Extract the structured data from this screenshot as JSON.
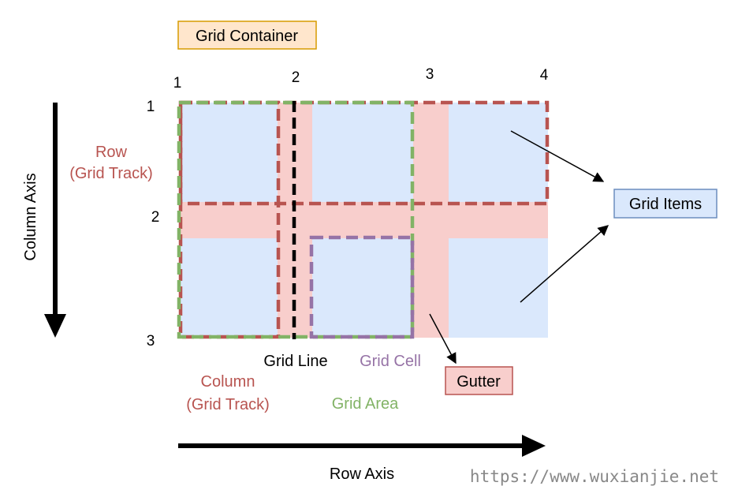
{
  "diagram": {
    "container_label": "Grid Container",
    "grid_items_label": "Grid Items",
    "gutter_label": "Gutter",
    "row_label": {
      "line1": "Row",
      "line2": "(Grid Track)"
    },
    "column_label": {
      "line1": "Column",
      "line2": "(Grid Track)"
    },
    "grid_line_label": "Grid Line",
    "grid_cell_label": "Grid Cell",
    "grid_area_label": "Grid Area",
    "column_axis_label": "Column Axis",
    "row_axis_label": "Row Axis",
    "column_line_numbers": [
      "1",
      "2",
      "3",
      "4"
    ],
    "row_line_numbers": [
      "1",
      "2",
      "3"
    ],
    "watermark": "https://www.wuxianjie.net"
  },
  "colors": {
    "cell_fill": "#dae8fc",
    "gutter_fill": "#f8cecc",
    "track_dash": "#b85450",
    "area_dash": "#82b366",
    "cell_dash": "#9673a6",
    "line_dash": "#000000",
    "container_box_fill": "#ffe6cc",
    "container_box_stroke": "#d79b00",
    "items_box_fill": "#dae8fc",
    "items_box_stroke": "#6c8ebf",
    "gutter_box_fill": "#f8cecc",
    "gutter_box_stroke": "#b85450"
  }
}
